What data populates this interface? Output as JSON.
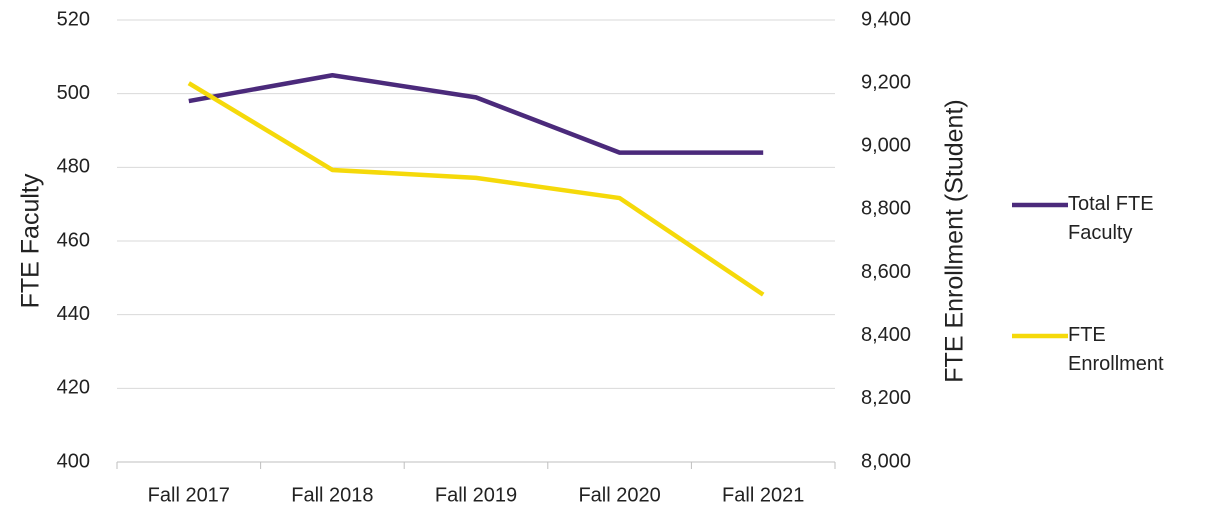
{
  "chart_data": {
    "type": "line",
    "categories": [
      "Fall 2017",
      "Fall 2018",
      "Fall 2019",
      "Fall 2020",
      "Fall 2021"
    ],
    "series": [
      {
        "name": "Total FTE Faculty",
        "color": "#4b2a7b",
        "values": [
          498,
          505,
          499,
          484,
          484
        ]
      },
      {
        "name": "FTE Enrollment",
        "color": "#f5d90a",
        "axis": "y2",
        "values": [
          9200,
          8925,
          8900,
          8836,
          8530
        ]
      }
    ],
    "ylabel": "FTE Faculty",
    "y2label": "FTE Enrollment (Student)",
    "ylim": [
      400,
      520
    ],
    "yticks": [
      400,
      420,
      440,
      460,
      480,
      500,
      520
    ],
    "y2lim": [
      8000,
      9400
    ],
    "y2ticks": [
      {
        "value": 8000,
        "label": "8,000"
      },
      {
        "value": 8200,
        "label": "8,200"
      },
      {
        "value": 8400,
        "label": "8,400"
      },
      {
        "value": 8600,
        "label": "8,600"
      },
      {
        "value": 8800,
        "label": "8,800"
      },
      {
        "value": 9000,
        "label": "9,000"
      },
      {
        "value": 9200,
        "label": "9,200"
      },
      {
        "value": 9400,
        "label": "9,400"
      }
    ],
    "grid": true,
    "legend": "right"
  }
}
